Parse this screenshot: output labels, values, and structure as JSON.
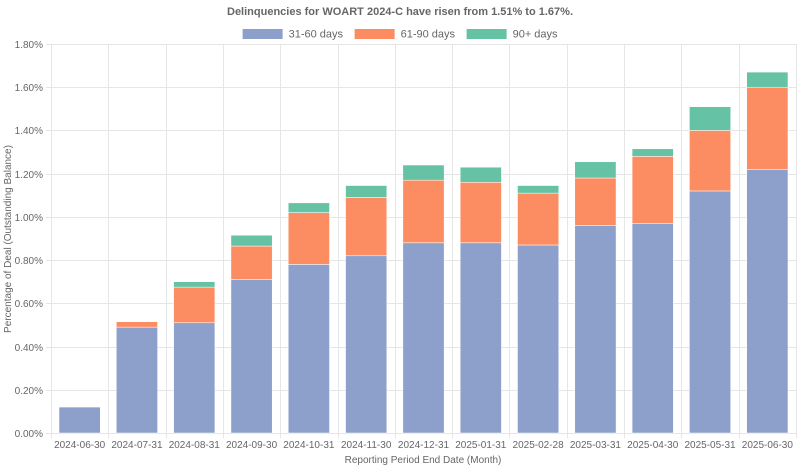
{
  "chart_data": {
    "type": "bar",
    "stacked": true,
    "title": "Delinquencies for WOART 2024-C have risen from 1.51% to 1.67%.",
    "xlabel": "Reporting Period End Date (Month)",
    "ylabel": "Percentage of Deal (Outstanding Balance)",
    "ylim": [
      0,
      1.8
    ],
    "yticks": [
      0,
      0.2,
      0.4,
      0.6,
      0.8,
      1.0,
      1.2,
      1.4,
      1.6,
      1.8
    ],
    "ytick_labels": [
      "0.00%",
      "0.20%",
      "0.40%",
      "0.60%",
      "0.80%",
      "1.00%",
      "1.20%",
      "1.40%",
      "1.60%",
      "1.80%"
    ],
    "grid": true,
    "legend_position": "top",
    "categories": [
      "2024-06-30",
      "2024-07-31",
      "2024-08-31",
      "2024-09-30",
      "2024-10-31",
      "2024-11-30",
      "2024-12-31",
      "2025-01-31",
      "2025-02-28",
      "2025-03-31",
      "2025-04-30",
      "2025-05-31",
      "2025-06-30"
    ],
    "series": [
      {
        "name": "31-60 days",
        "color": "#8da0cb",
        "values": [
          0.12,
          0.49,
          0.51,
          0.71,
          0.78,
          0.82,
          0.88,
          0.88,
          0.87,
          0.96,
          0.97,
          1.12,
          1.22
        ]
      },
      {
        "name": "61-90 days",
        "color": "#fc8d62",
        "values": [
          0.0,
          0.025,
          0.165,
          0.155,
          0.24,
          0.27,
          0.29,
          0.28,
          0.24,
          0.22,
          0.31,
          0.28,
          0.38
        ]
      },
      {
        "name": "90+ days",
        "color": "#66c2a5",
        "values": [
          0.0,
          0.0,
          0.025,
          0.05,
          0.045,
          0.055,
          0.07,
          0.07,
          0.035,
          0.075,
          0.035,
          0.11,
          0.07
        ]
      }
    ]
  }
}
